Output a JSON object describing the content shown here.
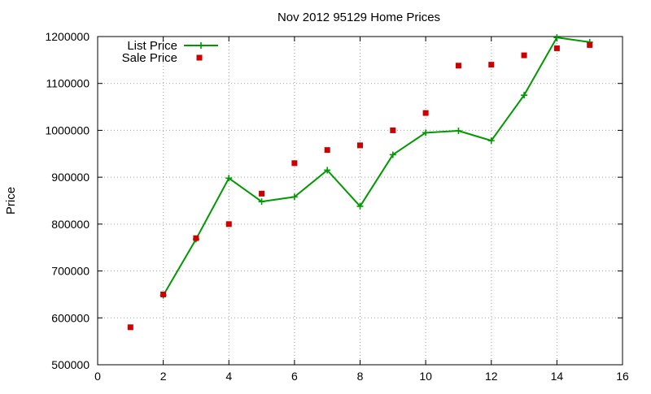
{
  "colors": {
    "list_series": "#009900",
    "sale_series": "#cc0000",
    "grid": "#a0a0a0",
    "axes": "#000000"
  },
  "chart_data": {
    "type": "line",
    "title": "Nov 2012 95129 Home Prices",
    "xlabel": "",
    "ylabel": "Price",
    "xlim": [
      0,
      16
    ],
    "ylim": [
      500000,
      1200000
    ],
    "xticks": [
      0,
      2,
      4,
      6,
      8,
      10,
      12,
      14,
      16
    ],
    "yticks": [
      500000,
      600000,
      700000,
      800000,
      900000,
      1000000,
      1100000,
      1200000
    ],
    "grid": true,
    "legend_position": "top-left",
    "series": [
      {
        "name": "List Price",
        "style": "line-plus",
        "x": [
          2,
          3,
          4,
          5,
          6,
          7,
          8,
          9,
          10,
          11,
          12,
          13,
          14,
          15
        ],
        "y": [
          648000,
          768000,
          898000,
          848000,
          858000,
          915000,
          838000,
          948000,
          995000,
          999000,
          978000,
          1075000,
          1198000,
          1188000
        ]
      },
      {
        "name": "Sale Price",
        "style": "square-points",
        "x": [
          1,
          2,
          3,
          4,
          5,
          6,
          7,
          8,
          9,
          10,
          11,
          12,
          13,
          14,
          15
        ],
        "y": [
          580000,
          650000,
          770000,
          800000,
          865000,
          930000,
          958000,
          968000,
          1000000,
          1037000,
          1138000,
          1140000,
          1160000,
          1175000,
          1182000
        ]
      }
    ]
  }
}
